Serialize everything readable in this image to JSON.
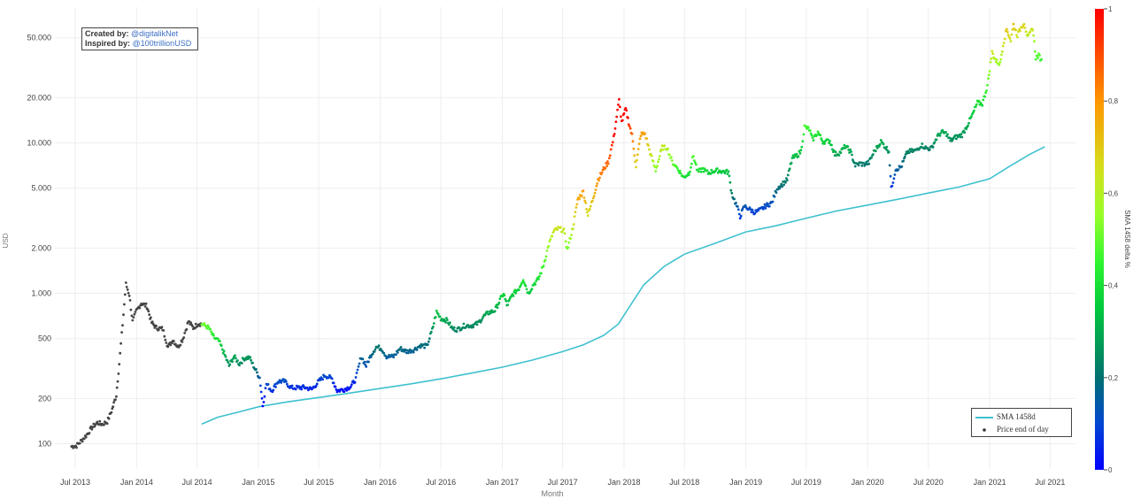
{
  "credits": {
    "created_label": "Created by:",
    "created_handle": "@digitalikNet",
    "inspired_label": "Inspired by:",
    "inspired_handle": "@100trillionUSD"
  },
  "legend": {
    "sma_label": "SMA 1458d",
    "price_label": "Price end of day"
  },
  "colors": {
    "sma_line": "#3fc1cf",
    "pre_sma_points": "#444444",
    "grid": "#eeeeee",
    "axis_text": "#444444"
  },
  "chart_data": {
    "type": "scatter",
    "xlabel": "Month",
    "ylabel": "USD",
    "yscale": "log",
    "ylim": [
      68,
      80000
    ],
    "xlim": [
      "2013-05-01",
      "2021-09-15"
    ],
    "x_ticks": [
      {
        "date": "2013-07-01",
        "label": "Jul 2013"
      },
      {
        "date": "2014-01-01",
        "label": "Jan 2014"
      },
      {
        "date": "2014-07-01",
        "label": "Jul 2014"
      },
      {
        "date": "2015-01-01",
        "label": "Jan 2015"
      },
      {
        "date": "2015-07-01",
        "label": "Jul 2015"
      },
      {
        "date": "2016-01-01",
        "label": "Jan 2016"
      },
      {
        "date": "2016-07-01",
        "label": "Jul 2016"
      },
      {
        "date": "2017-01-01",
        "label": "Jan 2017"
      },
      {
        "date": "2017-07-01",
        "label": "Jul 2017"
      },
      {
        "date": "2018-01-01",
        "label": "Jan 2018"
      },
      {
        "date": "2018-07-01",
        "label": "Jul 2018"
      },
      {
        "date": "2019-01-01",
        "label": "Jan 2019"
      },
      {
        "date": "2019-07-01",
        "label": "Jul 2019"
      },
      {
        "date": "2020-01-01",
        "label": "Jan 2020"
      },
      {
        "date": "2020-07-01",
        "label": "Jul 2020"
      },
      {
        "date": "2021-01-01",
        "label": "Jan 2021"
      },
      {
        "date": "2021-07-01",
        "label": "Jul 2021"
      }
    ],
    "y_ticks": [
      {
        "value": 100,
        "label": "100"
      },
      {
        "value": 200,
        "label": "200"
      },
      {
        "value": 500,
        "label": "500"
      },
      {
        "value": 1000,
        "label": "1.000"
      },
      {
        "value": 2000,
        "label": "2.000"
      },
      {
        "value": 5000,
        "label": "5.000"
      },
      {
        "value": 10000,
        "label": "10.000"
      },
      {
        "value": 20000,
        "label": "20.000"
      },
      {
        "value": 50000,
        "label": "50.000"
      }
    ],
    "colorbar": {
      "title": "SMA 1458 delta %",
      "range": [
        0,
        1
      ],
      "ticks": [
        {
          "value": 0,
          "label": "0"
        },
        {
          "value": 0.2,
          "label": "0,2"
        },
        {
          "value": 0.4,
          "label": "0,4"
        },
        {
          "value": 0.6,
          "label": "0,6"
        },
        {
          "value": 0.8,
          "label": "0,8"
        },
        {
          "value": 1,
          "label": "1"
        }
      ]
    },
    "sma_start": "2014-07-15",
    "series": [
      {
        "name": "SMA 1458d",
        "type": "line",
        "x": [
          "2014-07-15",
          "2014-09-01",
          "2014-11-01",
          "2015-01-01",
          "2015-04-01",
          "2015-07-01",
          "2015-10-01",
          "2016-01-01",
          "2016-04-01",
          "2016-07-01",
          "2016-10-01",
          "2017-01-01",
          "2017-04-01",
          "2017-07-01",
          "2017-09-01",
          "2017-11-01",
          "2017-12-15",
          "2018-01-15",
          "2018-03-01",
          "2018-05-01",
          "2018-07-01",
          "2018-10-01",
          "2019-01-01",
          "2019-04-01",
          "2019-07-01",
          "2019-10-01",
          "2020-01-01",
          "2020-04-01",
          "2020-07-01",
          "2020-10-01",
          "2021-01-01",
          "2021-03-01",
          "2021-05-01",
          "2021-06-15"
        ],
        "values": [
          135,
          150,
          162,
          176,
          190,
          203,
          217,
          233,
          250,
          270,
          295,
          323,
          360,
          410,
          455,
          525,
          625,
          800,
          1140,
          1510,
          1820,
          2150,
          2560,
          2810,
          3160,
          3530,
          3860,
          4220,
          4640,
          5090,
          5780,
          6980,
          8400,
          9420
        ]
      },
      {
        "name": "Price end of day",
        "type": "scatter",
        "points": [
          [
            "2013-06-20",
            96
          ],
          [
            "2013-07-05",
            97
          ],
          [
            "2013-07-20",
            105
          ],
          [
            "2013-08-05",
            115
          ],
          [
            "2013-08-20",
            128
          ],
          [
            "2013-09-05",
            138
          ],
          [
            "2013-09-20",
            135
          ],
          [
            "2013-10-05",
            140
          ],
          [
            "2013-10-20",
            170
          ],
          [
            "2013-11-01",
            210
          ],
          [
            "2013-11-10",
            340
          ],
          [
            "2013-11-20",
            620
          ],
          [
            "2013-11-30",
            1150
          ],
          [
            "2013-12-10",
            980
          ],
          [
            "2013-12-20",
            650
          ],
          [
            "2013-12-31",
            760
          ],
          [
            "2014-01-15",
            860
          ],
          [
            "2014-02-01",
            820
          ],
          [
            "2014-02-15",
            640
          ],
          [
            "2014-03-01",
            590
          ],
          [
            "2014-03-20",
            580
          ],
          [
            "2014-04-05",
            440
          ],
          [
            "2014-04-20",
            490
          ],
          [
            "2014-05-05",
            440
          ],
          [
            "2014-05-20",
            500
          ],
          [
            "2014-06-05",
            650
          ],
          [
            "2014-06-20",
            590
          ],
          [
            "2014-07-05",
            630
          ],
          [
            "2014-07-20",
            620
          ],
          [
            "2014-08-05",
            590
          ],
          [
            "2014-08-20",
            510
          ],
          [
            "2014-09-05",
            480
          ],
          [
            "2014-09-20",
            400
          ],
          [
            "2014-10-05",
            330
          ],
          [
            "2014-10-20",
            380
          ],
          [
            "2014-11-05",
            340
          ],
          [
            "2014-11-20",
            370
          ],
          [
            "2014-12-05",
            375
          ],
          [
            "2014-12-20",
            320
          ],
          [
            "2015-01-05",
            275
          ],
          [
            "2015-01-14",
            180
          ],
          [
            "2015-01-25",
            250
          ],
          [
            "2015-02-10",
            225
          ],
          [
            "2015-03-01",
            260
          ],
          [
            "2015-03-20",
            260
          ],
          [
            "2015-04-10",
            235
          ],
          [
            "2015-05-01",
            236
          ],
          [
            "2015-05-20",
            237
          ],
          [
            "2015-06-10",
            230
          ],
          [
            "2015-07-01",
            260
          ],
          [
            "2015-07-20",
            285
          ],
          [
            "2015-08-10",
            270
          ],
          [
            "2015-08-25",
            225
          ],
          [
            "2015-09-15",
            230
          ],
          [
            "2015-10-05",
            240
          ],
          [
            "2015-10-20",
            270
          ],
          [
            "2015-11-05",
            380
          ],
          [
            "2015-11-20",
            330
          ],
          [
            "2015-12-05",
            390
          ],
          [
            "2015-12-20",
            440
          ],
          [
            "2016-01-05",
            430
          ],
          [
            "2016-01-20",
            380
          ],
          [
            "2016-02-10",
            380
          ],
          [
            "2016-03-01",
            430
          ],
          [
            "2016-03-20",
            410
          ],
          [
            "2016-04-10",
            420
          ],
          [
            "2016-05-01",
            450
          ],
          [
            "2016-05-20",
            445
          ],
          [
            "2016-06-05",
            570
          ],
          [
            "2016-06-18",
            750
          ],
          [
            "2016-07-01",
            680
          ],
          [
            "2016-07-20",
            660
          ],
          [
            "2016-08-05",
            580
          ],
          [
            "2016-08-20",
            575
          ],
          [
            "2016-09-10",
            610
          ],
          [
            "2016-10-01",
            610
          ],
          [
            "2016-10-20",
            630
          ],
          [
            "2016-11-05",
            700
          ],
          [
            "2016-11-20",
            740
          ],
          [
            "2016-12-10",
            770
          ],
          [
            "2016-12-25",
            900
          ],
          [
            "2017-01-05",
            1000
          ],
          [
            "2017-01-15",
            830
          ],
          [
            "2017-02-01",
            980
          ],
          [
            "2017-02-20",
            1080
          ],
          [
            "2017-03-05",
            1250
          ],
          [
            "2017-03-20",
            1000
          ],
          [
            "2017-04-05",
            1150
          ],
          [
            "2017-04-20",
            1250
          ],
          [
            "2017-05-05",
            1550
          ],
          [
            "2017-05-20",
            2100
          ],
          [
            "2017-06-05",
            2600
          ],
          [
            "2017-06-20",
            2700
          ],
          [
            "2017-07-05",
            2600
          ],
          [
            "2017-07-15",
            1950
          ],
          [
            "2017-08-01",
            2750
          ],
          [
            "2017-08-15",
            4200
          ],
          [
            "2017-09-01",
            4750
          ],
          [
            "2017-09-15",
            3300
          ],
          [
            "2017-10-01",
            4350
          ],
          [
            "2017-10-15",
            5700
          ],
          [
            "2017-11-01",
            6700
          ],
          [
            "2017-11-15",
            7500
          ],
          [
            "2017-12-01",
            10800
          ],
          [
            "2017-12-10",
            15000
          ],
          [
            "2017-12-17",
            19100
          ],
          [
            "2017-12-25",
            13800
          ],
          [
            "2018-01-06",
            16800
          ],
          [
            "2018-01-15",
            13700
          ],
          [
            "2018-01-25",
            11200
          ],
          [
            "2018-02-06",
            7000
          ],
          [
            "2018-02-20",
            11400
          ],
          [
            "2018-03-05",
            11500
          ],
          [
            "2018-03-20",
            8600
          ],
          [
            "2018-04-06",
            6600
          ],
          [
            "2018-04-25",
            9300
          ],
          [
            "2018-05-10",
            9300
          ],
          [
            "2018-05-25",
            7500
          ],
          [
            "2018-06-10",
            6800
          ],
          [
            "2018-06-28",
            5900
          ],
          [
            "2018-07-15",
            6300
          ],
          [
            "2018-07-28",
            8200
          ],
          [
            "2018-08-10",
            6400
          ],
          [
            "2018-08-25",
            6700
          ],
          [
            "2018-09-10",
            6300
          ],
          [
            "2018-09-25",
            6500
          ],
          [
            "2018-10-10",
            6550
          ],
          [
            "2018-10-25",
            6450
          ],
          [
            "2018-11-10",
            6400
          ],
          [
            "2018-11-20",
            4600
          ],
          [
            "2018-12-05",
            3800
          ],
          [
            "2018-12-15",
            3250
          ],
          [
            "2018-12-28",
            3800
          ],
          [
            "2019-01-10",
            3650
          ],
          [
            "2019-01-28",
            3450
          ],
          [
            "2019-02-15",
            3600
          ],
          [
            "2019-03-01",
            3800
          ],
          [
            "2019-03-20",
            4000
          ],
          [
            "2019-04-05",
            5000
          ],
          [
            "2019-04-20",
            5300
          ],
          [
            "2019-05-05",
            5700
          ],
          [
            "2019-05-20",
            7900
          ],
          [
            "2019-06-05",
            8300
          ],
          [
            "2019-06-15",
            8800
          ],
          [
            "2019-06-26",
            12800
          ],
          [
            "2019-07-10",
            12300
          ],
          [
            "2019-07-20",
            10500
          ],
          [
            "2019-08-05",
            11800
          ],
          [
            "2019-08-20",
            10200
          ],
          [
            "2019-09-10",
            10300
          ],
          [
            "2019-09-25",
            8400
          ],
          [
            "2019-10-10",
            8600
          ],
          [
            "2019-10-26",
            9500
          ],
          [
            "2019-11-10",
            8800
          ],
          [
            "2019-11-25",
            7100
          ],
          [
            "2019-12-10",
            7300
          ],
          [
            "2019-12-20",
            7200
          ],
          [
            "2020-01-05",
            7400
          ],
          [
            "2020-01-20",
            8700
          ],
          [
            "2020-02-10",
            10200
          ],
          [
            "2020-02-25",
            9300
          ],
          [
            "2020-03-05",
            8800
          ],
          [
            "2020-03-12",
            4950
          ],
          [
            "2020-03-25",
            6700
          ],
          [
            "2020-04-10",
            6900
          ],
          [
            "2020-04-29",
            8700
          ],
          [
            "2020-05-10",
            8800
          ],
          [
            "2020-05-25",
            8900
          ],
          [
            "2020-06-10",
            9700
          ],
          [
            "2020-06-25",
            9200
          ],
          [
            "2020-07-10",
            9200
          ],
          [
            "2020-07-28",
            11000
          ],
          [
            "2020-08-10",
            11800
          ],
          [
            "2020-08-25",
            11500
          ],
          [
            "2020-09-05",
            10300
          ],
          [
            "2020-09-20",
            10900
          ],
          [
            "2020-10-10",
            11300
          ],
          [
            "2020-10-25",
            13000
          ],
          [
            "2020-11-10",
            15300
          ],
          [
            "2020-11-25",
            18500
          ],
          [
            "2020-12-10",
            18200
          ],
          [
            "2020-12-25",
            24000
          ],
          [
            "2021-01-08",
            40000
          ],
          [
            "2021-01-20",
            35000
          ],
          [
            "2021-02-01",
            33500
          ],
          [
            "2021-02-10",
            45000
          ],
          [
            "2021-02-21",
            57000
          ],
          [
            "2021-03-05",
            48000
          ],
          [
            "2021-03-13",
            61000
          ],
          [
            "2021-03-25",
            52000
          ],
          [
            "2021-04-05",
            58500
          ],
          [
            "2021-04-14",
            63000
          ],
          [
            "2021-04-25",
            50000
          ],
          [
            "2021-05-10",
            58000
          ],
          [
            "2021-05-19",
            37000
          ],
          [
            "2021-05-28",
            38000
          ],
          [
            "2021-06-05",
            36000
          ]
        ]
      }
    ]
  }
}
